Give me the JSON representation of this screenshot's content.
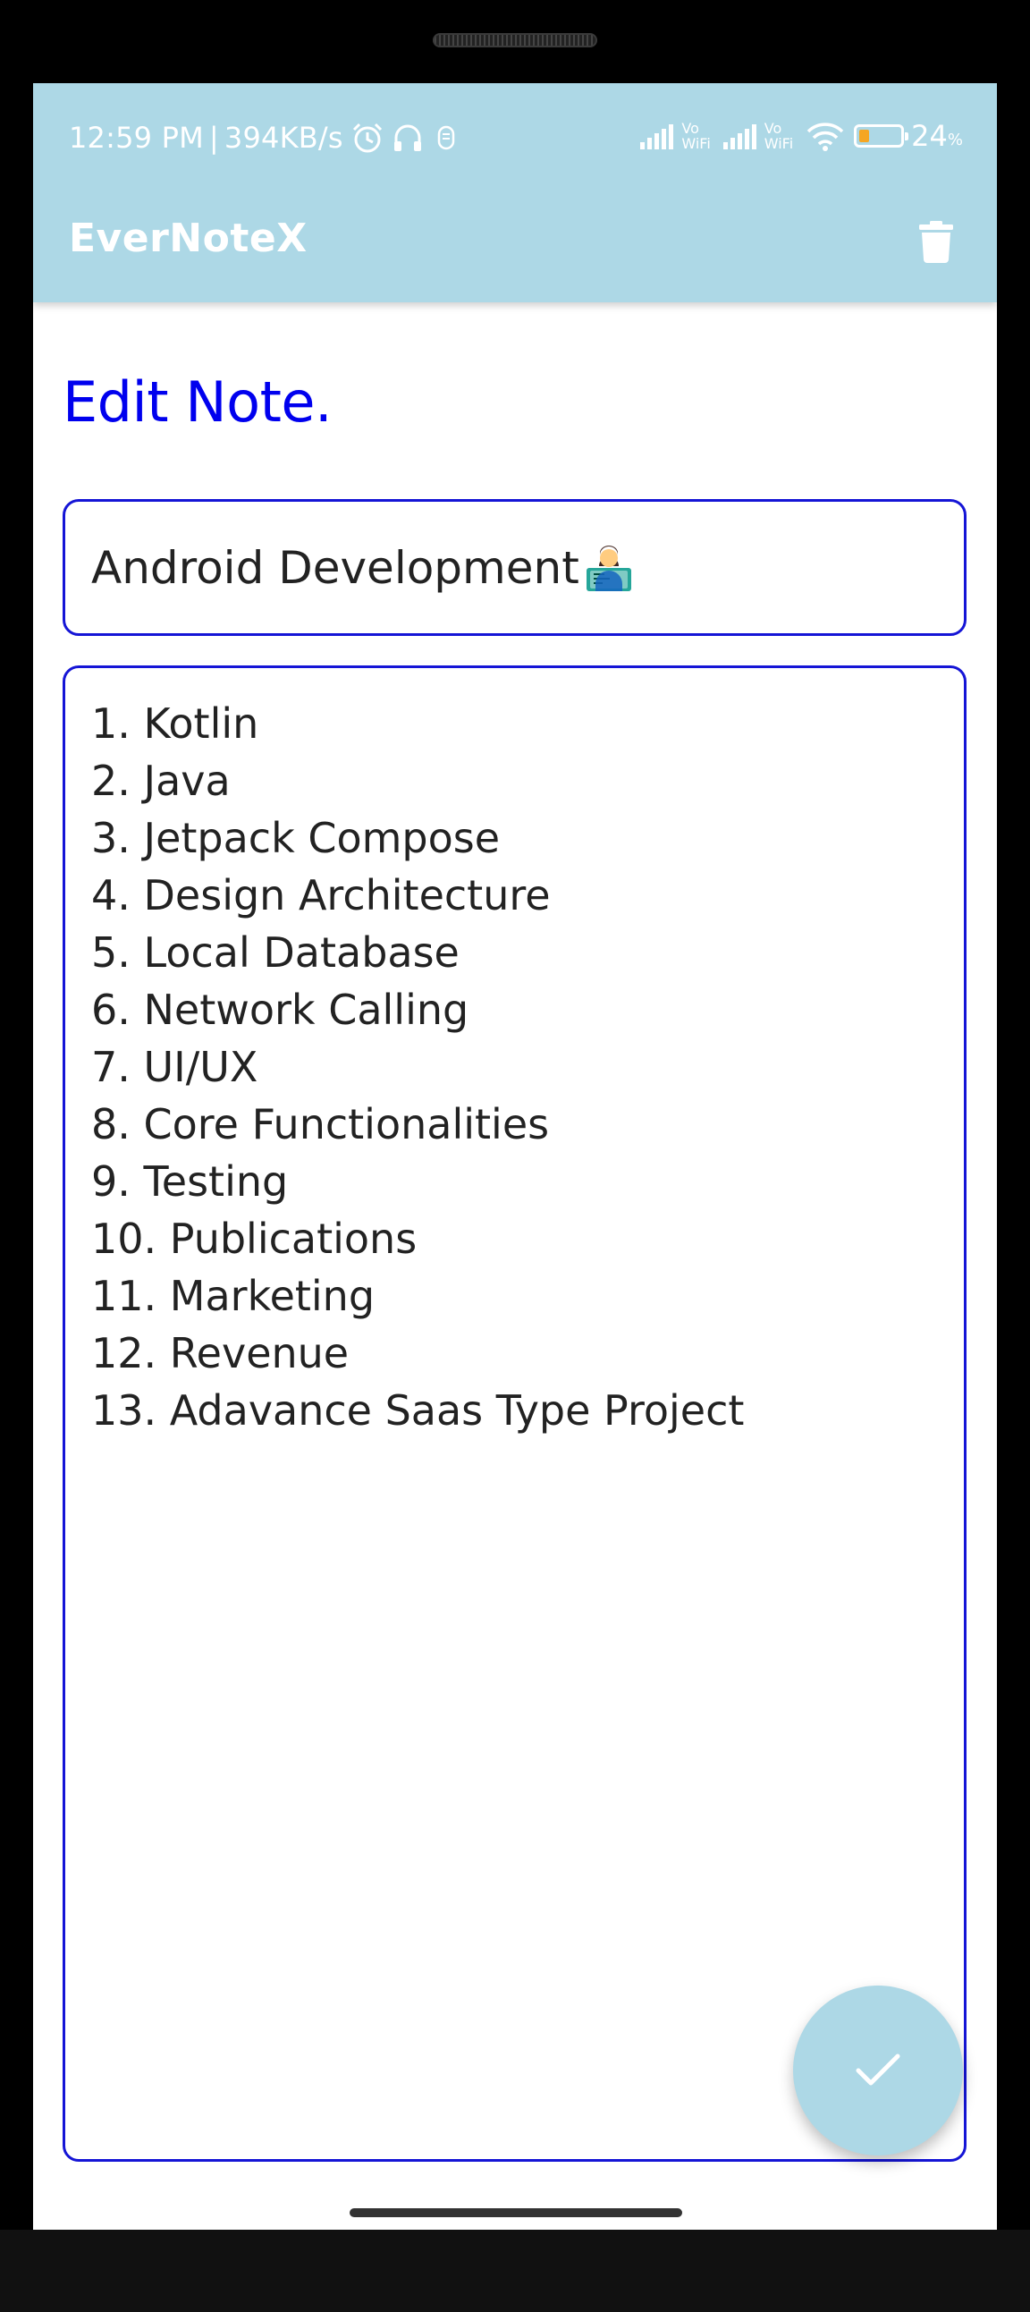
{
  "status_bar": {
    "time": "12:59 PM",
    "separator": "|",
    "net_speed": "394KB/s",
    "vowifi_top": "Vo",
    "vowifi_bottom": "WiFi",
    "battery_percent": "24",
    "battery_percent_sign": "%",
    "battery_level": 0.24,
    "icons": [
      "alarm-icon",
      "headset-icon",
      "notification-icon",
      "signal-icon",
      "wifi-icon",
      "battery-icon"
    ]
  },
  "app_bar": {
    "title": "EverNoteX",
    "delete_icon": "trash-icon"
  },
  "page": {
    "heading": "Edit Note."
  },
  "note": {
    "title": "Android Development",
    "title_emoji": "technologist-emoji",
    "content_lines": [
      "1. Kotlin",
      "2. Java",
      "3. Jetpack Compose",
      "4. Design Architecture",
      "5. Local Database",
      "6. Network Calling",
      "7. UI/UX",
      "8. Core Functionalities",
      "9. Testing",
      "10. Publications",
      "11. Marketing",
      "12. Revenue",
      "13. Adavance Saas Type Project"
    ]
  },
  "fab": {
    "icon": "check-icon"
  },
  "colors": {
    "app_bar": "#add8e6",
    "heading": "#0000ee",
    "field_border": "#1515d6",
    "text": "#222222"
  }
}
